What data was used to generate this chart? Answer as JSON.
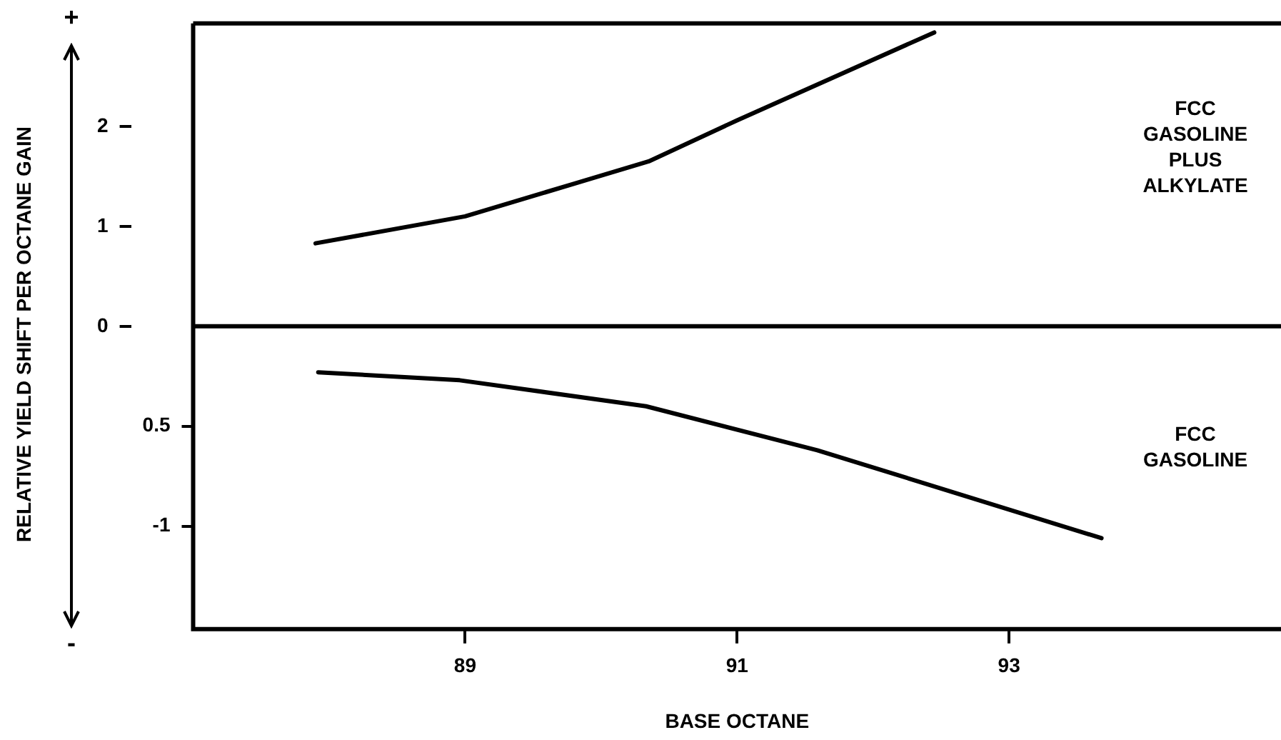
{
  "chart_data": {
    "type": "line",
    "xlabel": "BASE OCTANE",
    "ylabel": "RELATIVE YIELD SHIFT PER OCTANE GAIN",
    "xlim": [
      87,
      95
    ],
    "xticks": [
      89,
      91,
      93
    ],
    "ylim": [
      -3.03,
      3.03
    ],
    "yticks": [
      0,
      1,
      2
    ],
    "y2lim": [
      -1.515,
      1.515
    ],
    "y2ticks": [
      {
        "value": -0.5,
        "label": "0.5"
      },
      -1
    ],
    "ref_lines": [
      {
        "axis": "y",
        "value": 0,
        "color": "#000000"
      }
    ],
    "annotations": [
      "+",
      "-"
    ],
    "legend": false,
    "grid": false,
    "marker": "none",
    "line_style": "solid",
    "series": [
      {
        "name": "FCC GASOLINE PLUS ALKYLATE",
        "color": "#000000",
        "x": [
          87.9,
          89,
          90.35,
          91,
          92.45
        ],
        "values": [
          0.83,
          1.1,
          1.65,
          2.06,
          2.94
        ]
      },
      {
        "name": "FCC GASOLINE",
        "color": "#000000",
        "axis": "y2",
        "x": [
          87.92,
          88.96,
          90.33,
          91.59,
          93.68
        ],
        "values": [
          -0.23,
          -0.27,
          -0.4,
          -0.62,
          -1.06
        ]
      }
    ]
  }
}
